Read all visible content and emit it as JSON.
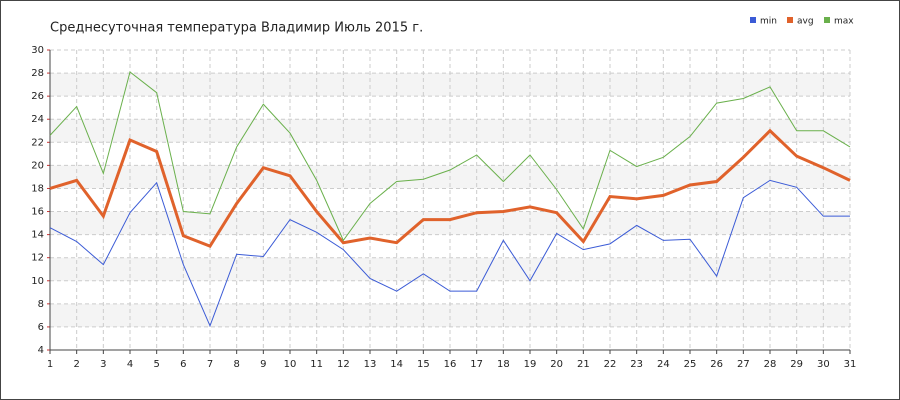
{
  "chart_data": {
    "type": "line",
    "title": "Среднесуточная температура Владимир  Июль 2015 г.",
    "x": [
      1,
      2,
      3,
      4,
      5,
      6,
      7,
      8,
      9,
      10,
      11,
      12,
      13,
      14,
      15,
      16,
      17,
      18,
      19,
      20,
      21,
      22,
      23,
      24,
      25,
      26,
      27,
      28,
      29,
      30,
      31
    ],
    "xlim": [
      1,
      31
    ],
    "ylim": [
      4,
      30
    ],
    "yticks": [
      4,
      6,
      8,
      10,
      12,
      14,
      16,
      18,
      20,
      22,
      24,
      26,
      28,
      30
    ],
    "grid": true,
    "legend": "top-right",
    "series": [
      {
        "name": "min",
        "color": "#3b5bd6",
        "values": [
          14.6,
          13.4,
          11.4,
          15.9,
          18.5,
          11.4,
          6.1,
          12.3,
          12.1,
          15.3,
          14.2,
          12.7,
          10.2,
          9.1,
          10.6,
          9.1,
          9.1,
          13.5,
          10.0,
          14.1,
          12.7,
          13.2,
          14.8,
          13.5,
          13.6,
          10.4,
          17.2,
          18.7,
          18.1,
          15.6,
          15.6
        ]
      },
      {
        "name": "avg",
        "color": "#e0622b",
        "values": [
          18.0,
          18.7,
          15.6,
          22.2,
          21.2,
          13.9,
          13.0,
          16.7,
          19.8,
          19.1,
          16.0,
          13.3,
          13.7,
          13.3,
          15.3,
          15.3,
          15.9,
          16.0,
          16.4,
          15.9,
          13.4,
          17.3,
          17.1,
          17.4,
          18.3,
          18.6,
          20.7,
          23.0,
          20.8,
          19.8,
          18.7
        ]
      },
      {
        "name": "max",
        "color": "#6ab04c",
        "values": [
          22.6,
          25.1,
          19.3,
          28.1,
          26.3,
          16.0,
          15.8,
          21.6,
          25.3,
          22.8,
          18.7,
          13.5,
          16.7,
          18.6,
          18.8,
          19.6,
          20.9,
          18.6,
          20.9,
          17.9,
          14.5,
          21.3,
          19.9,
          20.7,
          22.5,
          25.4,
          25.8,
          26.8,
          23.0,
          23.0,
          21.6
        ]
      }
    ]
  }
}
